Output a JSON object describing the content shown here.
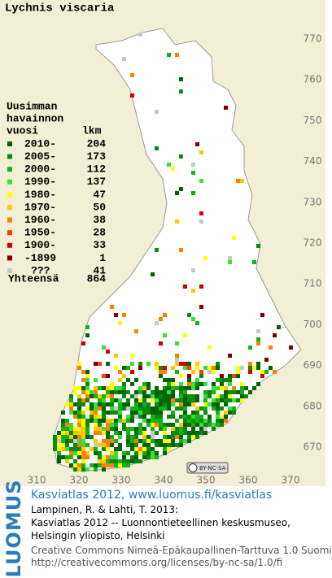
{
  "title": "Lychnis viscaria",
  "legend": {
    "header": [
      "Uusimman",
      "havainnon",
      "vuosi"
    ],
    "count_header": "lkm",
    "items": [
      {
        "label": "2010-",
        "count": 204,
        "color": "#006400"
      },
      {
        "label": "2005-",
        "count": 173,
        "color": "#0a8a0a"
      },
      {
        "label": "2000-",
        "count": 112,
        "color": "#12b312"
      },
      {
        "label": "1990-",
        "count": 137,
        "color": "#3ddc3d"
      },
      {
        "label": "1980-",
        "count": 47,
        "color": "#ffff00"
      },
      {
        "label": "1970-",
        "count": 50,
        "color": "#ffc800"
      },
      {
        "label": "1960-",
        "count": 38,
        "color": "#ff8000"
      },
      {
        "label": "1950-",
        "count": 28,
        "color": "#ff3c00"
      },
      {
        "label": "1900-",
        "count": 33,
        "color": "#d20000"
      },
      {
        "label": "-1899",
        "count": 1,
        "color": "#800000"
      },
      {
        "label": "???",
        "count": 41,
        "color": "#c8c8c8"
      }
    ],
    "total_label": "Yhteensä",
    "total": 864
  },
  "grid_x": [
    "310",
    "320",
    "330",
    "340",
    "350",
    "360",
    "370"
  ],
  "grid_y": [
    "770",
    "760",
    "750",
    "740",
    "730",
    "720",
    "710",
    "700",
    "690",
    "680",
    "670"
  ],
  "license_badge": "BY-NC-SA",
  "logo": "LUOMUS",
  "footer": {
    "link": "Kasviatlas 2012, www.luomus.fi/kasviatlas",
    "citation": [
      "Lampinen, R. & Lahti, T. 2013:",
      "Kasviatlas 2012 -- Luonnontieteellinen keskusmuseo,",
      "Helsingin yliopisto, Helsinki"
    ],
    "license": [
      "Creative Commons Nimeä-Epäkaupallinen-Tarttuva 1.0 Suomi",
      "http://creativecommons.org/licenses/by-nc-sa/1.0/fi"
    ]
  }
}
